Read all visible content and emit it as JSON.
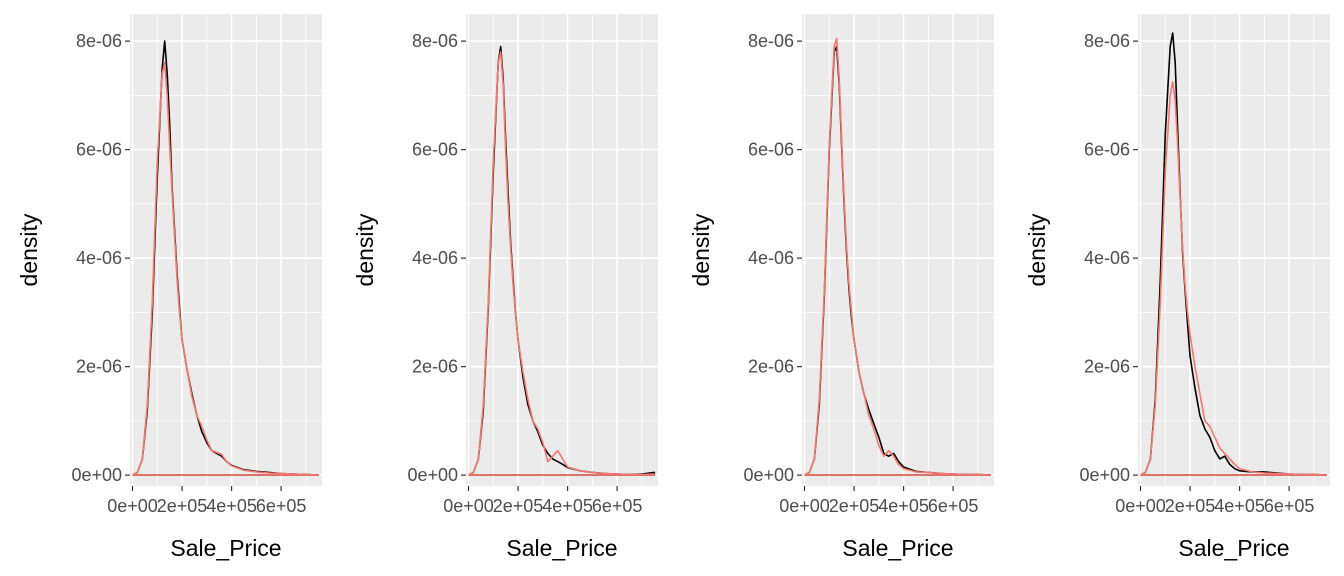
{
  "chart_data": [
    {
      "type": "line",
      "xlabel": "Sale_Price",
      "ylabel": "density",
      "xlim": [
        -10000,
        765000
      ],
      "ylim": [
        -2e-07,
        8.5e-06
      ],
      "x_ticks": [
        0,
        200000,
        400000,
        600000
      ],
      "x_tick_labels": [
        "0e+00",
        "2e+05",
        "4e+05",
        "6e+05"
      ],
      "y_ticks": [
        0,
        2e-06,
        4e-06,
        6e-06,
        8e-06
      ],
      "y_tick_labels": [
        "0e+00",
        "2e-06",
        "4e-06",
        "6e-06",
        "8e-06"
      ],
      "series": [
        {
          "color": "#000000",
          "x": [
            0,
            20000,
            40000,
            60000,
            80000,
            100000,
            120000,
            130000,
            140000,
            150000,
            160000,
            170000,
            180000,
            190000,
            200000,
            220000,
            240000,
            260000,
            280000,
            300000,
            320000,
            340000,
            360000,
            380000,
            400000,
            450000,
            500000,
            550000,
            600000,
            650000,
            700000,
            750000
          ],
          "y": [
            0,
            5e-08,
            3e-07,
            1.2e-06,
            3e-06,
            5.5e-06,
            7.5e-06,
            8e-06,
            7.4e-06,
            6.5e-06,
            5.3e-06,
            4.5e-06,
            3.7e-06,
            3.1e-06,
            2.5e-06,
            1.95e-06,
            1.5e-06,
            1.1e-06,
            8e-07,
            6e-07,
            4.5e-07,
            4e-07,
            3.5e-07,
            2.5e-07,
            1.8e-07,
            1e-07,
            7e-08,
            5e-08,
            3e-08,
            2e-08,
            1e-08,
            0
          ]
        },
        {
          "color": "#F8766D",
          "x": [
            0,
            20000,
            40000,
            60000,
            80000,
            100000,
            120000,
            130000,
            140000,
            150000,
            160000,
            170000,
            180000,
            190000,
            200000,
            220000,
            240000,
            260000,
            280000,
            300000,
            320000,
            340000,
            360000,
            380000,
            400000,
            450000,
            500000,
            550000,
            600000,
            650000,
            700000,
            750000
          ],
          "y": [
            0,
            5e-08,
            3e-07,
            1.3e-06,
            3.2e-06,
            5.8e-06,
            7.4e-06,
            7.6e-06,
            7e-06,
            6.1e-06,
            5.2e-06,
            4.4e-06,
            3.6e-06,
            3e-06,
            2.5e-06,
            1.95e-06,
            1.45e-06,
            1.1e-06,
            9e-07,
            6.5e-07,
            4.5e-07,
            4.2e-07,
            3.8e-07,
            2.5e-07,
            1.7e-07,
            9e-08,
            6e-08,
            4e-08,
            3e-08,
            2e-08,
            1e-08,
            0
          ]
        }
      ]
    },
    {
      "type": "line",
      "xlabel": "Sale_Price",
      "ylabel": "density",
      "xlim": [
        -10000,
        765000
      ],
      "ylim": [
        -2e-07,
        8.5e-06
      ],
      "x_ticks": [
        0,
        200000,
        400000,
        600000
      ],
      "x_tick_labels": [
        "0e+00",
        "2e+05",
        "4e+05",
        "6e+05"
      ],
      "y_ticks": [
        0,
        2e-06,
        4e-06,
        6e-06,
        8e-06
      ],
      "y_tick_labels": [
        "0e+00",
        "2e-06",
        "4e-06",
        "6e-06",
        "8e-06"
      ],
      "series": [
        {
          "color": "#000000",
          "x": [
            0,
            20000,
            40000,
            60000,
            80000,
            100000,
            120000,
            130000,
            140000,
            150000,
            160000,
            170000,
            180000,
            190000,
            200000,
            220000,
            240000,
            260000,
            280000,
            300000,
            320000,
            340000,
            360000,
            380000,
            400000,
            450000,
            500000,
            550000,
            600000,
            650000,
            700000,
            750000
          ],
          "y": [
            0,
            5e-08,
            3e-07,
            1.2e-06,
            3.1e-06,
            5.6e-06,
            7.6e-06,
            7.9e-06,
            7.3e-06,
            6.2e-06,
            5.2e-06,
            4.3e-06,
            3.6e-06,
            3e-06,
            2.5e-06,
            1.8e-06,
            1.3e-06,
            1e-06,
            8e-07,
            5.5e-07,
            4e-07,
            3e-07,
            2.5e-07,
            2e-07,
            1.4e-07,
            8e-08,
            5e-08,
            3e-08,
            2e-08,
            1e-08,
            2e-08,
            5e-08
          ]
        },
        {
          "color": "#F8766D",
          "x": [
            0,
            20000,
            40000,
            60000,
            80000,
            100000,
            120000,
            130000,
            140000,
            150000,
            160000,
            170000,
            180000,
            190000,
            200000,
            220000,
            240000,
            260000,
            280000,
            300000,
            320000,
            340000,
            360000,
            380000,
            400000,
            450000,
            500000,
            550000,
            600000,
            650000,
            700000,
            750000
          ],
          "y": [
            0,
            5e-08,
            3e-07,
            1.3e-06,
            3.2e-06,
            5.8e-06,
            7.6e-06,
            7.8e-06,
            7.2e-06,
            6e-06,
            5e-06,
            4.2e-06,
            3.5e-06,
            3e-06,
            2.5e-06,
            1.9e-06,
            1.4e-06,
            1e-06,
            8.5e-07,
            6e-07,
            2.5e-07,
            3.5e-07,
            4.5e-07,
            3e-07,
            1.5e-07,
            8e-08,
            5e-08,
            3e-08,
            2e-08,
            1e-08,
            1e-08,
            2e-08
          ]
        }
      ]
    },
    {
      "type": "line",
      "xlabel": "Sale_Price",
      "ylabel": "density",
      "xlim": [
        -10000,
        765000
      ],
      "ylim": [
        -2e-07,
        8.5e-06
      ],
      "x_ticks": [
        0,
        200000,
        400000,
        600000
      ],
      "x_tick_labels": [
        "0e+00",
        "2e+05",
        "4e+05",
        "6e+05"
      ],
      "y_ticks": [
        0,
        2e-06,
        4e-06,
        6e-06,
        8e-06
      ],
      "y_tick_labels": [
        "0e+00",
        "2e-06",
        "4e-06",
        "6e-06",
        "8e-06"
      ],
      "series": [
        {
          "color": "#000000",
          "x": [
            0,
            20000,
            40000,
            60000,
            80000,
            100000,
            120000,
            130000,
            140000,
            150000,
            160000,
            170000,
            180000,
            190000,
            200000,
            220000,
            240000,
            260000,
            280000,
            300000,
            320000,
            340000,
            360000,
            380000,
            400000,
            450000,
            500000,
            550000,
            600000,
            650000,
            700000,
            750000
          ],
          "y": [
            0,
            5e-08,
            3e-07,
            1.3e-06,
            3.3e-06,
            6e-06,
            7.8e-06,
            7.9e-06,
            7.2e-06,
            6.1e-06,
            5e-06,
            4.1e-06,
            3.4e-06,
            2.9e-06,
            2.5e-06,
            1.9e-06,
            1.5e-06,
            1.2e-06,
            9.5e-07,
            7e-07,
            4e-07,
            3.5e-07,
            4e-07,
            2.5e-07,
            1.5e-07,
            7e-08,
            5e-08,
            3e-08,
            2e-08,
            1e-08,
            1e-08,
            0
          ]
        },
        {
          "color": "#F8766D",
          "x": [
            0,
            20000,
            40000,
            60000,
            80000,
            100000,
            120000,
            130000,
            140000,
            150000,
            160000,
            170000,
            180000,
            190000,
            200000,
            220000,
            240000,
            260000,
            280000,
            300000,
            320000,
            340000,
            360000,
            380000,
            400000,
            450000,
            500000,
            550000,
            600000,
            650000,
            700000,
            750000
          ],
          "y": [
            0,
            5e-08,
            3e-07,
            1.4e-06,
            3.4e-06,
            6.1e-06,
            7.9e-06,
            8.05e-06,
            7.3e-06,
            6.2e-06,
            5.1e-06,
            4.2e-06,
            3.5e-06,
            3e-06,
            2.5e-06,
            1.9e-06,
            1.5e-06,
            1.1e-06,
            8.5e-07,
            5.5e-07,
            3.5e-07,
            4.5e-07,
            3.5e-07,
            2e-07,
            1.2e-07,
            6e-08,
            5e-08,
            3e-08,
            2e-08,
            1e-08,
            1e-08,
            0
          ]
        }
      ]
    },
    {
      "type": "line",
      "xlabel": "Sale_Price",
      "ylabel": "density",
      "xlim": [
        -10000,
        765000
      ],
      "ylim": [
        -2e-07,
        8.5e-06
      ],
      "x_ticks": [
        0,
        200000,
        400000,
        600000
      ],
      "x_tick_labels": [
        "0e+00",
        "2e+05",
        "4e+05",
        "6e+05"
      ],
      "y_ticks": [
        0,
        2e-06,
        4e-06,
        6e-06,
        8e-06
      ],
      "y_tick_labels": [
        "0e+00",
        "2e-06",
        "4e-06",
        "6e-06",
        "8e-06"
      ],
      "series": [
        {
          "color": "#000000",
          "x": [
            0,
            20000,
            40000,
            60000,
            80000,
            100000,
            120000,
            130000,
            140000,
            150000,
            160000,
            170000,
            180000,
            190000,
            200000,
            220000,
            240000,
            260000,
            280000,
            300000,
            320000,
            340000,
            360000,
            380000,
            400000,
            450000,
            500000,
            550000,
            600000,
            650000,
            700000,
            750000
          ],
          "y": [
            0,
            5e-08,
            3e-07,
            1.4e-06,
            3.6e-06,
            6.3e-06,
            7.9e-06,
            8.15e-06,
            7.6e-06,
            6.4e-06,
            5.2e-06,
            4.1e-06,
            3.4e-06,
            2.8e-06,
            2.2e-06,
            1.6e-06,
            1.1e-06,
            8.5e-07,
            7e-07,
            4.5e-07,
            3e-07,
            3.5e-07,
            2e-07,
            1.2e-07,
            8e-08,
            6e-08,
            6e-08,
            4e-08,
            2e-08,
            1e-08,
            1e-08,
            0
          ]
        },
        {
          "color": "#F8766D",
          "x": [
            0,
            20000,
            40000,
            60000,
            80000,
            100000,
            120000,
            130000,
            140000,
            150000,
            160000,
            170000,
            180000,
            190000,
            200000,
            220000,
            240000,
            260000,
            280000,
            300000,
            320000,
            340000,
            360000,
            380000,
            400000,
            450000,
            500000,
            550000,
            600000,
            650000,
            700000,
            750000
          ],
          "y": [
            0,
            5e-08,
            3e-07,
            1.3e-06,
            3.2e-06,
            5.6e-06,
            7e-06,
            7.25e-06,
            6.9e-06,
            6.1e-06,
            5.1e-06,
            4.2e-06,
            3.5e-06,
            3e-06,
            2.6e-06,
            2e-06,
            1.5e-06,
            1e-06,
            9e-07,
            7e-07,
            5e-07,
            4e-07,
            3e-07,
            2e-07,
            1.2e-07,
            6e-08,
            4e-08,
            3e-08,
            2e-08,
            1e-08,
            1e-08,
            0
          ]
        }
      ]
    }
  ]
}
